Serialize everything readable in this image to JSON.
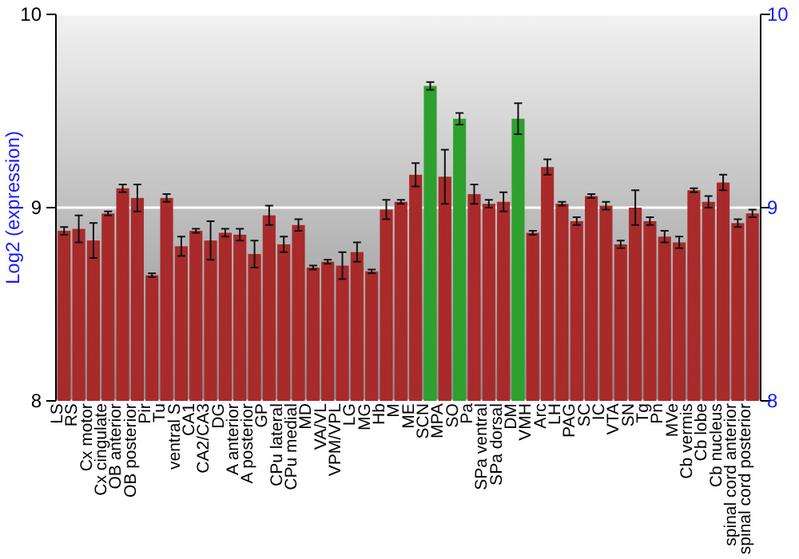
{
  "chart_data": {
    "type": "bar",
    "ylabel": "Log2 (expression)",
    "categories": [
      "LS",
      "RS",
      "Cx motor",
      "Cx cingulate",
      "OB anterior",
      "OB posterior",
      "Pir",
      "Tu",
      "ventral S",
      "CA1",
      "CA2/CA3",
      "DG",
      "A anterior",
      "A posterior",
      "GP",
      "CPu lateral",
      "CPu medial",
      "MD",
      "VA/VL",
      "VPM/VPL",
      "LG",
      "MG",
      "Hb",
      "M",
      "ME",
      "SCN",
      "MPA",
      "SO",
      "Pa",
      "SPa ventral",
      "SPa dorsal",
      "DM",
      "VMH",
      "Arc",
      "LH",
      "PAG",
      "SC",
      "IC",
      "VTA",
      "SN",
      "Tg",
      "Pn",
      "MVe",
      "Cb vermis",
      "Cb lobe",
      "Cb nucleus",
      "spinal cord anterior",
      "spinal cord posterior"
    ],
    "values": [
      8.88,
      8.89,
      8.83,
      8.97,
      9.1,
      9.05,
      8.65,
      9.05,
      8.8,
      8.88,
      8.83,
      8.87,
      8.86,
      8.76,
      8.96,
      8.81,
      8.91,
      8.69,
      8.72,
      8.7,
      8.77,
      8.67,
      8.99,
      9.03,
      9.17,
      9.63,
      9.16,
      9.46,
      9.07,
      9.02,
      9.03,
      9.46,
      8.87,
      9.21,
      9.02,
      8.93,
      9.06,
      9.01,
      8.81,
      9.0,
      8.93,
      8.85,
      8.82,
      9.09,
      9.03,
      9.13,
      8.92,
      8.97
    ],
    "errors": [
      0.02,
      0.07,
      0.09,
      0.01,
      0.02,
      0.07,
      0.01,
      0.02,
      0.05,
      0.01,
      0.1,
      0.02,
      0.03,
      0.07,
      0.05,
      0.04,
      0.03,
      0.01,
      0.01,
      0.07,
      0.05,
      0.01,
      0.05,
      0.01,
      0.06,
      0.02,
      0.14,
      0.03,
      0.05,
      0.02,
      0.05,
      0.08,
      0.01,
      0.04,
      0.01,
      0.02,
      0.01,
      0.02,
      0.02,
      0.09,
      0.02,
      0.03,
      0.03,
      0.01,
      0.03,
      0.04,
      0.02,
      0.02
    ],
    "colors": [
      "#a82a2a",
      "#a82a2a",
      "#a82a2a",
      "#a82a2a",
      "#a82a2a",
      "#a82a2a",
      "#a82a2a",
      "#a82a2a",
      "#a82a2a",
      "#a82a2a",
      "#a82a2a",
      "#a82a2a",
      "#a82a2a",
      "#a82a2a",
      "#a82a2a",
      "#a82a2a",
      "#a82a2a",
      "#a82a2a",
      "#a82a2a",
      "#a82a2a",
      "#a82a2a",
      "#a82a2a",
      "#a82a2a",
      "#a82a2a",
      "#a82a2a",
      "#2ea02e",
      "#a82a2a",
      "#2ea02e",
      "#a82a2a",
      "#a82a2a",
      "#a82a2a",
      "#2ea02e",
      "#a82a2a",
      "#a82a2a",
      "#a82a2a",
      "#a82a2a",
      "#a82a2a",
      "#a82a2a",
      "#a82a2a",
      "#a82a2a",
      "#a82a2a",
      "#a82a2a",
      "#a82a2a",
      "#a82a2a",
      "#a82a2a",
      "#a82a2a",
      "#a82a2a",
      "#a82a2a"
    ],
    "ylim": [
      8,
      10
    ],
    "yticks": [
      8,
      9,
      10
    ],
    "y2lim": [
      8,
      10
    ],
    "y2ticks": [
      8,
      9,
      10
    ],
    "grid": "y"
  }
}
